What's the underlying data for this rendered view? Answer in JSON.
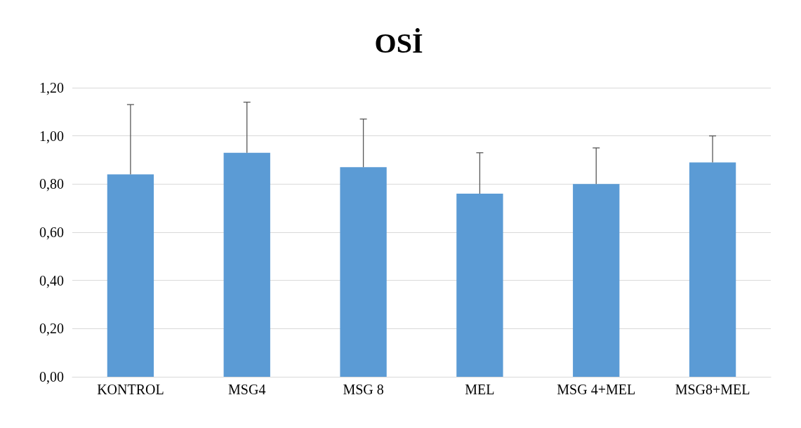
{
  "chart_data": {
    "type": "bar",
    "title": "OSİ",
    "categories": [
      "KONTROL",
      "MSG4",
      "MSG 8",
      "MEL",
      "MSG 4+MEL",
      "MSG8+MEL"
    ],
    "values": [
      0.84,
      0.93,
      0.87,
      0.76,
      0.8,
      0.89
    ],
    "errors": [
      [
        0.84,
        1.13
      ],
      [
        0.93,
        1.14
      ],
      [
        0.87,
        1.07
      ],
      [
        0.76,
        0.93
      ],
      [
        0.8,
        0.95
      ],
      [
        0.89,
        1.0
      ]
    ],
    "color": "#5b9bd5",
    "ylim": [
      0,
      1.2
    ],
    "yticks": [
      {
        "value": 0,
        "label": "0,00"
      },
      {
        "value": 0.2,
        "label": "0,20"
      },
      {
        "value": 0.4,
        "label": "0,40"
      },
      {
        "value": 0.6,
        "label": "0,60"
      },
      {
        "value": 0.8,
        "label": "0,80"
      },
      {
        "value": 1.0,
        "label": "1,00"
      },
      {
        "value": 1.2,
        "label": "1,20"
      }
    ],
    "grid": "y"
  }
}
